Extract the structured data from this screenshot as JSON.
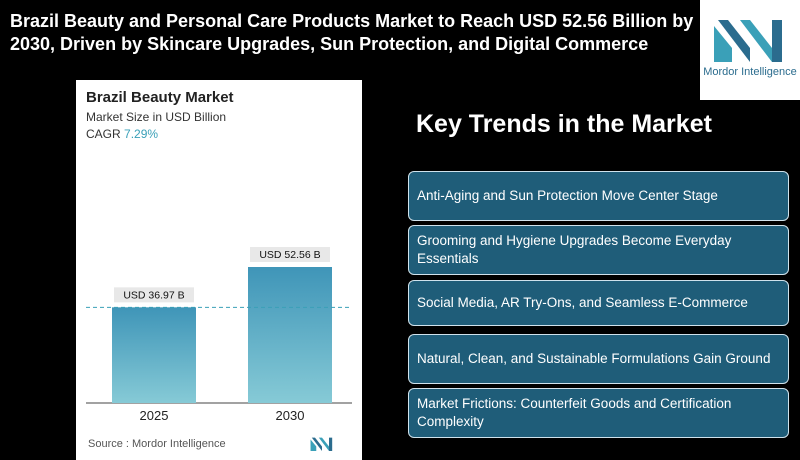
{
  "headline": "Brazil Beauty and Personal Care Products Market to Reach USD 52.56 Billion by 2030, Driven by Skincare Upgrades, Sun Protection, and Digital Commerce",
  "logo": {
    "text": "Mordor Intelligence",
    "icon": "mordor-logo-icon"
  },
  "card": {
    "title": "Brazil Beauty Market",
    "subtitle": "Market Size in USD Billion",
    "cagr_label": "CAGR",
    "cagr_value": "7.29%",
    "source": "Source :  Mordor Intelligence"
  },
  "chart_data": {
    "type": "bar",
    "title": "Brazil Beauty Market",
    "ylabel": "Market Size in USD Billion",
    "categories": [
      "2025",
      "2030"
    ],
    "values": [
      36.97,
      52.56
    ],
    "labels": [
      "USD 36.97 B",
      "USD 52.56 B"
    ],
    "reference_line": "dashed at 2025 value",
    "grid": false,
    "colors": {
      "bar_top": "#3f95b8",
      "bar_bottom": "#86cad6",
      "label_bg": "#e8e8e8"
    }
  },
  "trends_title": "Key Trends in the Market",
  "trends": [
    "Anti-Aging and Sun Protection Move Center Stage",
    "Grooming and Hygiene Upgrades Become Everyday Essentials",
    "Social Media, AR Try-Ons, and Seamless E-Commerce",
    "Natural, Clean, and Sustainable Formulations Gain Ground",
    "Market Frictions: Counterfeit Goods and Certification Complexity"
  ],
  "colors": {
    "background": "#000000",
    "trend_box": "#1f5d79",
    "accent": "#3aa0b8"
  }
}
